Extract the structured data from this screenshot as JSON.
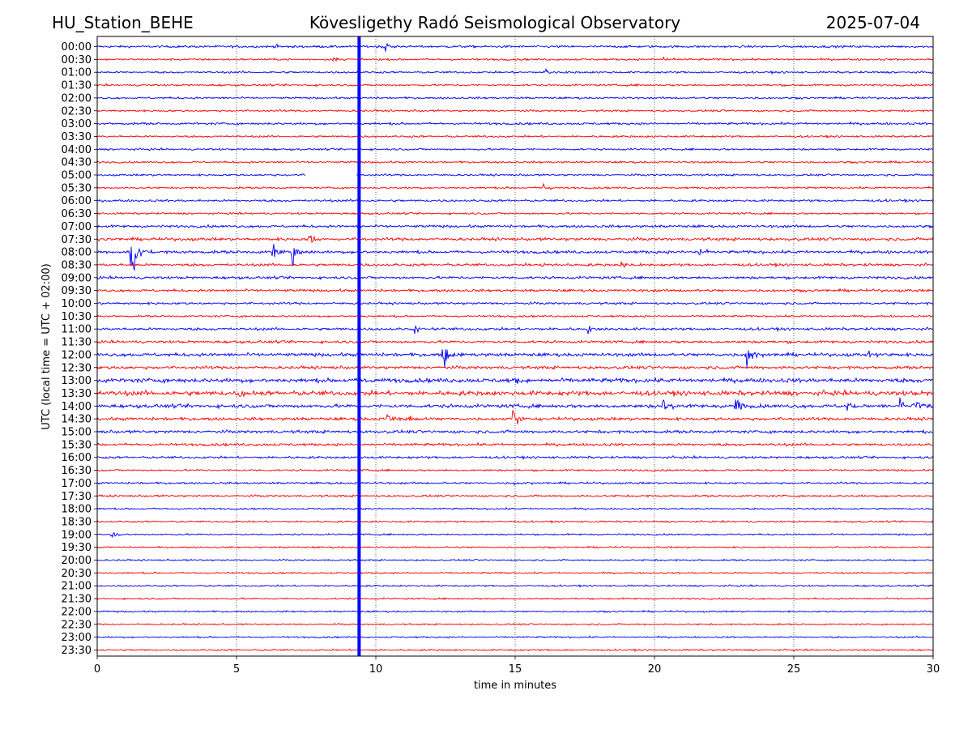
{
  "header": {
    "station": "HU_Station_BEHE",
    "observatory": "Kövesligethy Radó Seismological Observatory",
    "date": "2025-07-04"
  },
  "chart_data": {
    "type": "line",
    "title": "Kövesligethy Radó Seismological Observatory",
    "xlabel": "time in minutes",
    "ylabel": "UTC (local time = UTC + 02:00)",
    "xlim": [
      0,
      30
    ],
    "xticks": [
      "0",
      "5",
      "10",
      "15",
      "20",
      "25",
      "30"
    ],
    "grid": "vertical dotted lines every 5 minutes",
    "row_labels": [
      "00:00",
      "00:30",
      "01:00",
      "01:30",
      "02:00",
      "02:30",
      "03:00",
      "03:30",
      "04:00",
      "04:30",
      "05:00",
      "05:30",
      "06:00",
      "06:30",
      "07:00",
      "07:30",
      "08:00",
      "08:30",
      "09:00",
      "09:30",
      "10:00",
      "10:30",
      "11:00",
      "11:30",
      "12:00",
      "12:30",
      "13:00",
      "13:30",
      "14:00",
      "14:30",
      "15:00",
      "15:30",
      "16:00",
      "16:30",
      "17:00",
      "17:30",
      "18:00",
      "18:30",
      "19:00",
      "19:30",
      "20:00",
      "20:30",
      "21:00",
      "21:30",
      "22:00",
      "22:30",
      "23:00",
      "23:30"
    ],
    "trace_colors": [
      "#0000ff",
      "#ff0000"
    ],
    "noise_amplitude": [
      0.35,
      0.3,
      0.3,
      0.3,
      0.3,
      0.3,
      0.35,
      0.3,
      0.3,
      0.3,
      0.3,
      0.3,
      0.35,
      0.3,
      0.4,
      0.45,
      0.45,
      0.4,
      0.4,
      0.4,
      0.35,
      0.3,
      0.4,
      0.4,
      0.5,
      0.45,
      0.65,
      0.7,
      0.55,
      0.45,
      0.45,
      0.4,
      0.35,
      0.3,
      0.3,
      0.3,
      0.25,
      0.25,
      0.25,
      0.25,
      0.25,
      0.25,
      0.25,
      0.25,
      0.25,
      0.25,
      0.25,
      0.25
    ],
    "gaps": [
      {
        "row": "05:00",
        "from_min": 7.5,
        "to_min": 9.3
      }
    ],
    "events": [
      {
        "row": "00:00",
        "minute": 6.4,
        "amplitude": 1.0
      },
      {
        "row": "00:00",
        "minute": 10.3,
        "amplitude": 1.2
      },
      {
        "row": "00:30",
        "minute": 8.5,
        "amplitude": 0.9
      },
      {
        "row": "00:30",
        "minute": 20.3,
        "amplitude": 0.9
      },
      {
        "row": "01:00",
        "minute": 16.1,
        "amplitude": 1.0
      },
      {
        "row": "05:30",
        "minute": 16.0,
        "amplitude": 1.0
      },
      {
        "row": "07:30",
        "minute": 7.6,
        "amplitude": 1.6
      },
      {
        "row": "08:00",
        "minute": 1.2,
        "amplitude": 11.0
      },
      {
        "row": "08:00",
        "minute": 6.3,
        "amplitude": 2.4
      },
      {
        "row": "08:00",
        "minute": 7.0,
        "amplitude": 2.6
      },
      {
        "row": "08:00",
        "minute": 21.6,
        "amplitude": 1.6
      },
      {
        "row": "08:30",
        "minute": 15.9,
        "amplitude": 1.0
      },
      {
        "row": "08:30",
        "minute": 18.8,
        "amplitude": 1.0
      },
      {
        "row": "11:00",
        "minute": 11.4,
        "amplitude": 0.9
      },
      {
        "row": "11:00",
        "minute": 17.6,
        "amplitude": 0.9
      },
      {
        "row": "12:00",
        "minute": 12.4,
        "amplitude": 3.5
      },
      {
        "row": "12:00",
        "minute": 23.3,
        "amplitude": 3.0
      },
      {
        "row": "12:00",
        "minute": 27.7,
        "amplitude": 1.0
      },
      {
        "row": "13:00",
        "minute": 9.6,
        "amplitude": 1.2
      },
      {
        "row": "13:00",
        "minute": 15.0,
        "amplitude": 0.9
      },
      {
        "row": "13:30",
        "minute": 5.1,
        "amplitude": 1.2
      },
      {
        "row": "14:00",
        "minute": 20.3,
        "amplitude": 2.5
      },
      {
        "row": "14:00",
        "minute": 22.9,
        "amplitude": 3.2
      },
      {
        "row": "14:00",
        "minute": 26.9,
        "amplitude": 1.2
      },
      {
        "row": "14:00",
        "minute": 28.8,
        "amplitude": 1.4
      },
      {
        "row": "14:00",
        "minute": 29.3,
        "amplitude": 2.2
      },
      {
        "row": "14:30",
        "minute": 10.4,
        "amplitude": 1.5
      },
      {
        "row": "14:30",
        "minute": 11.2,
        "amplitude": 1.2
      },
      {
        "row": "14:30",
        "minute": 14.9,
        "amplitude": 2.5
      },
      {
        "row": "17:00",
        "minute": 14.9,
        "amplitude": 0.7
      },
      {
        "row": "19:00",
        "minute": 0.5,
        "amplitude": 0.8
      }
    ],
    "spike_column": {
      "minute": 9.4,
      "rows": "00:00-23:30"
    }
  }
}
